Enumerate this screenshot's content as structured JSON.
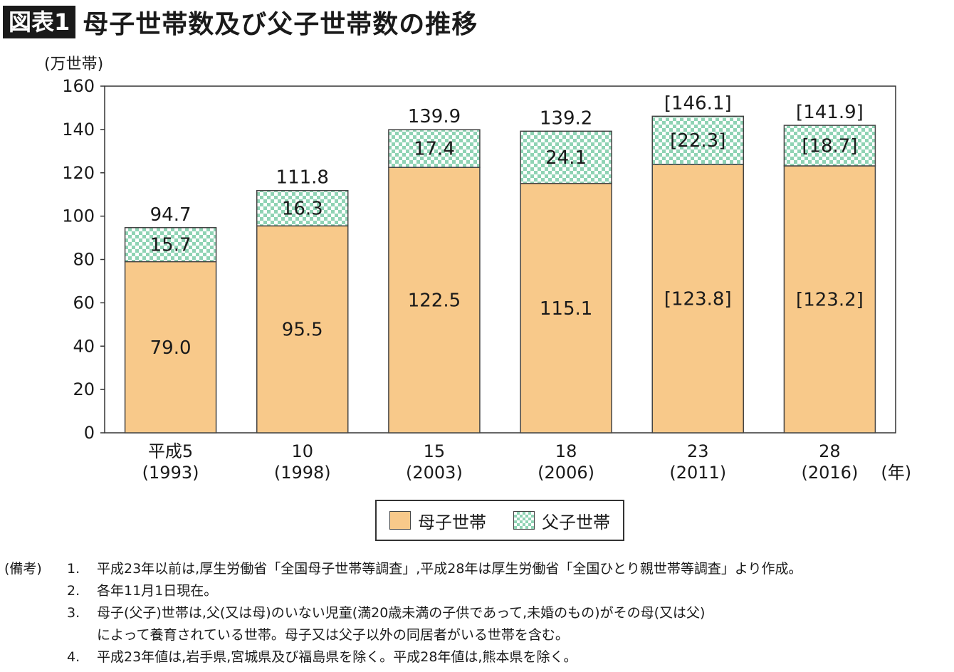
{
  "header": {
    "badge": "図表1",
    "title": "母子世帯数及び父子世帯数の推移"
  },
  "chart_data": {
    "type": "bar",
    "stacked": true,
    "yunit": "(万世帯)",
    "xunit": "(年)",
    "ylim": [
      0,
      160
    ],
    "yticks": [
      0,
      20,
      40,
      60,
      80,
      100,
      120,
      140,
      160
    ],
    "categories": [
      {
        "label": "平成5",
        "year": "(1993)"
      },
      {
        "label": "10",
        "year": "(1998)"
      },
      {
        "label": "15",
        "year": "(2003)"
      },
      {
        "label": "18",
        "year": "(2006)"
      },
      {
        "label": "23",
        "year": "(2011)"
      },
      {
        "label": "28",
        "year": "(2016)"
      }
    ],
    "series": [
      {
        "name": "母子世帯",
        "color": "#f8c98a",
        "values": [
          79.0,
          95.5,
          122.5,
          115.1,
          123.8,
          123.2
        ],
        "labels": [
          "79.0",
          "95.5",
          "122.5",
          "115.1",
          "[123.8]",
          "[123.2]"
        ]
      },
      {
        "name": "父子世帯",
        "color": "#8fd3b4",
        "values": [
          15.7,
          16.3,
          17.4,
          24.1,
          22.3,
          18.7
        ],
        "labels": [
          "15.7",
          "16.3",
          "17.4",
          "24.1",
          "[22.3]",
          "[18.7]"
        ]
      }
    ],
    "totals": [
      94.7,
      111.8,
      139.9,
      139.2,
      146.1,
      141.9
    ],
    "total_labels": [
      "94.7",
      "111.8",
      "139.9",
      "139.2",
      "[146.1]",
      "[141.9]"
    ],
    "legend": "bottom",
    "grid": false
  },
  "legend": {
    "mother": "母子世帯",
    "father": "父子世帯"
  },
  "notes": {
    "label": "(備考)",
    "items": [
      {
        "num": "1.",
        "text": "平成23年以前は,厚生労働省「全国母子世帯等調査」,平成28年は厚生労働省「全国ひとり親世帯等調査」より作成。"
      },
      {
        "num": "2.",
        "text": "各年11月1日現在。"
      },
      {
        "num": "3.",
        "text": "母子(父子)世帯は,父(又は母)のいない児童(満20歳未満の子供であって,未婚のもの)がその母(又は父)"
      },
      {
        "num": "",
        "text": "によって養育されている世帯。母子又は父子以外の同居者がいる世帯を含む。"
      },
      {
        "num": "4.",
        "text": "平成23年値は,岩手県,宮城県及び福島県を除く。平成28年値は,熊本県を除く。"
      }
    ]
  }
}
